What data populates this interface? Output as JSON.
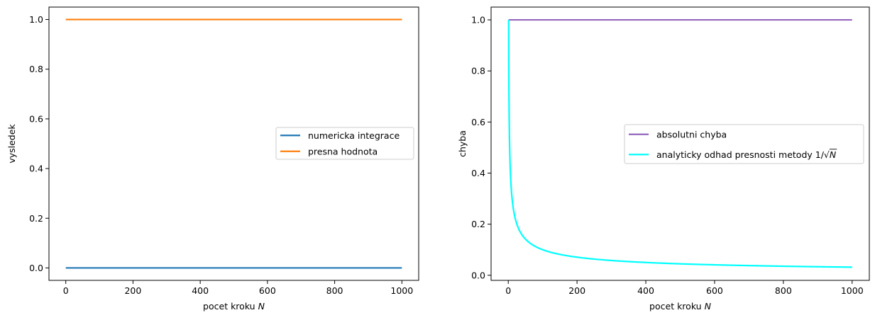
{
  "chart_data": [
    {
      "type": "line",
      "title": "",
      "xlabel": "pocet kroku",
      "xlabel_var": "N",
      "ylabel": "vysledek",
      "xlim": [
        -50,
        1050
      ],
      "ylim": [
        -0.05,
        1.05
      ],
      "xticks": [
        0,
        200,
        400,
        600,
        800,
        1000
      ],
      "xtick_labels": [
        "0",
        "200",
        "400",
        "600",
        "800",
        "1000"
      ],
      "yticks": [
        0.0,
        0.2,
        0.4,
        0.6,
        0.8,
        1.0
      ],
      "ytick_labels": [
        "0.0",
        "0.2",
        "0.4",
        "0.6",
        "0.8",
        "1.0"
      ],
      "grid": false,
      "legend_position": "center-right",
      "series": [
        {
          "name": "numericka integrace",
          "color": "#1f77b4",
          "x": [
            0,
            1000
          ],
          "y": [
            0.0,
            0.0
          ]
        },
        {
          "name": "presna hodnota",
          "color": "#ff7f0e",
          "x": [
            0,
            1000
          ],
          "y": [
            1.0,
            1.0
          ]
        }
      ]
    },
    {
      "type": "line",
      "title": "",
      "xlabel": "pocet kroku",
      "xlabel_var": "N",
      "ylabel": "chyba",
      "xlim": [
        -50,
        1050
      ],
      "ylim": [
        -0.02,
        1.05
      ],
      "xticks": [
        0,
        200,
        400,
        600,
        800,
        1000
      ],
      "xtick_labels": [
        "0",
        "200",
        "400",
        "600",
        "800",
        "1000"
      ],
      "yticks": [
        0.0,
        0.2,
        0.4,
        0.6,
        0.8,
        1.0
      ],
      "ytick_labels": [
        "0.0",
        "0.2",
        "0.4",
        "0.6",
        "0.8",
        "1.0"
      ],
      "grid": false,
      "legend_position": "center-right",
      "series": [
        {
          "name": "absolutni chyba",
          "color": "#9467bd",
          "x": [
            1,
            1000
          ],
          "y": [
            1.0,
            1.0
          ]
        },
        {
          "name": "analyticky odhad presnosti metody 1/",
          "name_math": "√N",
          "color": "#00ffff",
          "function": "1/sqrt(N)",
          "x_range": [
            1,
            1000
          ]
        }
      ]
    }
  ]
}
